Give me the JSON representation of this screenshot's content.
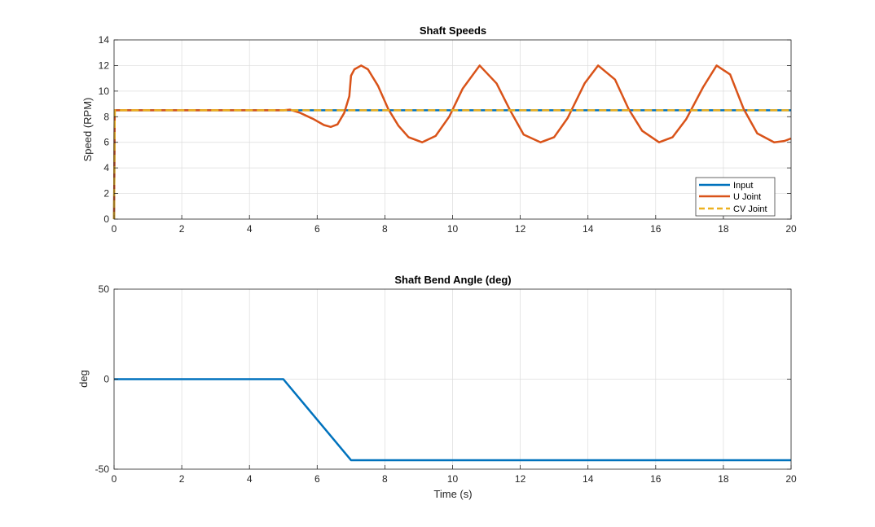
{
  "colors": {
    "input": "#0072BD",
    "ujoint": "#D95319",
    "cvjoint": "#EDB120",
    "grid": "#dcdcdc",
    "axis": "#262626"
  },
  "chart_data": [
    {
      "type": "line",
      "title": "Shaft Speeds",
      "xlabel": "",
      "ylabel": "Speed (RPM)",
      "xlim": [
        0,
        20
      ],
      "ylim": [
        0,
        14
      ],
      "xticks": [
        "0",
        "2",
        "4",
        "6",
        "8",
        "10",
        "12",
        "14",
        "16",
        "18",
        "20"
      ],
      "yticks": [
        "0",
        "2",
        "4",
        "6",
        "8",
        "10",
        "12",
        "14"
      ],
      "grid": true,
      "legend_position": "bottom-right",
      "series": [
        {
          "name": "Input",
          "color": "#0072BD",
          "style": "solid",
          "x": [
            0,
            0.02,
            20
          ],
          "y": [
            0,
            8.5,
            8.5
          ]
        },
        {
          "name": "U Joint",
          "color": "#D95319",
          "style": "solid",
          "x": [
            0,
            0.02,
            5.0,
            5.2,
            5.5,
            5.9,
            6.2,
            6.4,
            6.6,
            6.8,
            6.95,
            7.0,
            7.1,
            7.3,
            7.5,
            7.8,
            8.1,
            8.4,
            8.7,
            9.1,
            9.5,
            9.9,
            10.3,
            10.8,
            11.3,
            11.7,
            12.1,
            12.6,
            13.0,
            13.4,
            13.9,
            14.3,
            14.8,
            15.2,
            15.6,
            16.1,
            16.5,
            16.9,
            17.4,
            17.8,
            18.2,
            18.6,
            19.0,
            19.5,
            19.8,
            20.0
          ],
          "y": [
            0,
            8.5,
            8.5,
            8.55,
            8.3,
            7.8,
            7.35,
            7.2,
            7.4,
            8.3,
            9.6,
            11.2,
            11.7,
            12.0,
            11.7,
            10.4,
            8.6,
            7.3,
            6.4,
            6.0,
            6.5,
            8.0,
            10.2,
            12.0,
            10.6,
            8.5,
            6.6,
            6.0,
            6.4,
            7.9,
            10.6,
            12.0,
            10.9,
            8.6,
            6.9,
            6.0,
            6.4,
            7.8,
            10.3,
            12.0,
            11.3,
            8.6,
            6.7,
            6.0,
            6.1,
            6.3
          ]
        },
        {
          "name": "CV Joint",
          "color": "#EDB120",
          "style": "dashed",
          "x": [
            0,
            0.02,
            20
          ],
          "y": [
            0,
            8.5,
            8.5
          ]
        }
      ]
    },
    {
      "type": "line",
      "title": "Shaft Bend Angle (deg)",
      "xlabel": "Time (s)",
      "ylabel": "deg",
      "xlim": [
        0,
        20
      ],
      "ylim": [
        -50,
        50
      ],
      "xticks": [
        "0",
        "2",
        "4",
        "6",
        "8",
        "10",
        "12",
        "14",
        "16",
        "18",
        "20"
      ],
      "yticks": [
        "-50",
        "0",
        "50"
      ],
      "grid": true,
      "series": [
        {
          "color": "#0072BD",
          "style": "solid",
          "x": [
            0,
            5,
            7,
            20
          ],
          "y": [
            0,
            0,
            -45,
            -45
          ]
        }
      ]
    }
  ]
}
